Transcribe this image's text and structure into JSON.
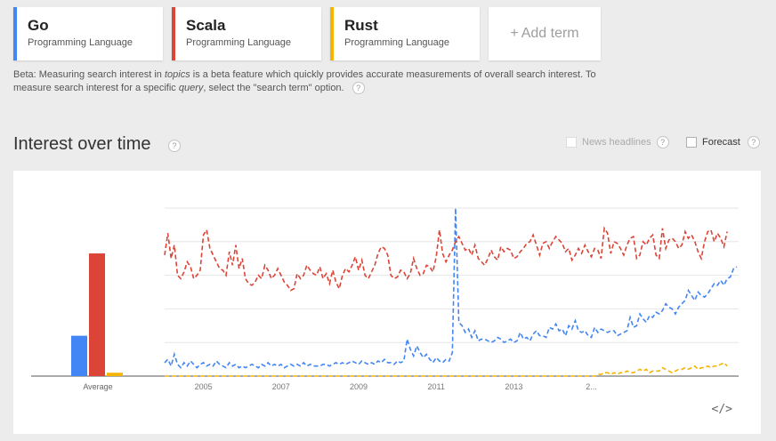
{
  "terms": [
    {
      "name": "Go",
      "type": "Programming Language",
      "color": "#4285f4"
    },
    {
      "name": "Scala",
      "type": "Programming Language",
      "color": "#db4437"
    },
    {
      "name": "Rust",
      "type": "Programming Language",
      "color": "#f4b400"
    }
  ],
  "add_term": {
    "plus": "+",
    "label": "Add term"
  },
  "beta_note": {
    "p1": "Beta: Measuring search interest in ",
    "topics": "topics",
    "p2": " is a beta feature which quickly provides accurate measurements of overall search interest. To measure search interest for a specific ",
    "query": "query",
    "p3": ", select the \"search term\" option.",
    "help": "?"
  },
  "section": {
    "title": "Interest over time",
    "help": "?"
  },
  "options": {
    "news_headlines": "News headlines",
    "forecast": "Forecast",
    "help": "?"
  },
  "embed_icon": "</>",
  "chart_data": {
    "type": "line",
    "x_start": "2004-01",
    "x_step": "month",
    "x_tick_labels": [
      "2005",
      "2007",
      "2009",
      "2011",
      "2013",
      "2..."
    ],
    "ylim": [
      0,
      100
    ],
    "grid": true,
    "average": {
      "label": "Average",
      "values": {
        "Go": 24,
        "Scala": 73,
        "Rust": 2
      }
    },
    "series": [
      {
        "name": "Go",
        "color": "#4285f4",
        "values": [
          8,
          10,
          6,
          13,
          7,
          5,
          8,
          6,
          9,
          7,
          5,
          7,
          8,
          6,
          7,
          6,
          9,
          7,
          6,
          5,
          8,
          6,
          7,
          5,
          6,
          5,
          6,
          7,
          6,
          5,
          7,
          6,
          8,
          6,
          7,
          6,
          7,
          5,
          6,
          7,
          6,
          7,
          6,
          8,
          6,
          7,
          6,
          6,
          6,
          7,
          7,
          6,
          7,
          8,
          7,
          8,
          7,
          8,
          9,
          8,
          7,
          9,
          8,
          7,
          8,
          7,
          9,
          8,
          10,
          8,
          8,
          7,
          9,
          8,
          9,
          22,
          16,
          12,
          18,
          14,
          11,
          13,
          10,
          8,
          11,
          9,
          8,
          10,
          9,
          14,
          100,
          32,
          30,
          26,
          28,
          23,
          27,
          21,
          22,
          22,
          21,
          20,
          21,
          23,
          22,
          20,
          21,
          22,
          20,
          21,
          26,
          22,
          23,
          21,
          25,
          27,
          24,
          24,
          23,
          29,
          28,
          31,
          27,
          28,
          24,
          30,
          28,
          33,
          27,
          26,
          27,
          24,
          23,
          29,
          26,
          28,
          27,
          26,
          27,
          27,
          24,
          25,
          26,
          27,
          35,
          29,
          30,
          37,
          34,
          32,
          36,
          35,
          38,
          37,
          39,
          43,
          41,
          40,
          37,
          41,
          43,
          45,
          51,
          48,
          45,
          50,
          48,
          47,
          49,
          52,
          55,
          54,
          57,
          54,
          58,
          59,
          64,
          65
        ]
      },
      {
        "name": "Scala",
        "color": "#db4437",
        "values": [
          72,
          85,
          70,
          78,
          60,
          58,
          62,
          68,
          65,
          58,
          60,
          63,
          84,
          87,
          76,
          72,
          68,
          64,
          63,
          60,
          74,
          66,
          78,
          64,
          70,
          58,
          55,
          54,
          56,
          60,
          58,
          66,
          63,
          58,
          60,
          64,
          60,
          56,
          54,
          51,
          52,
          61,
          58,
          60,
          66,
          63,
          61,
          60,
          65,
          58,
          61,
          55,
          63,
          56,
          52,
          60,
          64,
          62,
          66,
          71,
          63,
          69,
          60,
          58,
          62,
          66,
          73,
          77,
          76,
          72,
          60,
          58,
          59,
          63,
          62,
          58,
          61,
          70,
          64,
          60,
          61,
          66,
          65,
          62,
          71,
          87,
          73,
          68,
          72,
          75,
          80,
          83,
          79,
          75,
          76,
          72,
          78,
          70,
          68,
          66,
          70,
          75,
          71,
          69,
          77,
          74,
          76,
          75,
          70,
          71,
          74,
          76,
          79,
          80,
          84,
          78,
          72,
          79,
          80,
          76,
          80,
          83,
          81,
          79,
          74,
          76,
          69,
          72,
          76,
          73,
          78,
          74,
          71,
          76,
          75,
          70,
          88,
          85,
          73,
          80,
          79,
          76,
          72,
          78,
          82,
          83,
          70,
          72,
          80,
          78,
          82,
          84,
          72,
          70,
          88,
          76,
          81,
          82,
          80,
          76,
          78,
          86,
          82,
          84,
          80,
          74,
          70,
          80,
          86,
          87,
          80,
          85,
          82,
          77,
          86
        ]
      },
      {
        "name": "Rust",
        "color": "#f4b400",
        "values": [
          0,
          0,
          0,
          0,
          0,
          0,
          0,
          0,
          0,
          0,
          0,
          0,
          0,
          0,
          0,
          0,
          0,
          0,
          0,
          0,
          0,
          0,
          0,
          0,
          0,
          0,
          0,
          0,
          0,
          0,
          0,
          0,
          0,
          0,
          0,
          0,
          0,
          0,
          0,
          0,
          0,
          0,
          0,
          0,
          0,
          0,
          0,
          0,
          0,
          0,
          0,
          0,
          0,
          0,
          0,
          0,
          0,
          0,
          0,
          0,
          0,
          0,
          0,
          0,
          0,
          0,
          0,
          0,
          0,
          0,
          0,
          0,
          0,
          0,
          0,
          0,
          0,
          0,
          0,
          0,
          0,
          0,
          0,
          0,
          0,
          0,
          0,
          0,
          0,
          0,
          0,
          0,
          0,
          0,
          0,
          0,
          0,
          0,
          0,
          0,
          0,
          0,
          0,
          0,
          0,
          0,
          0,
          0,
          0,
          0,
          0,
          0,
          0,
          0,
          0,
          0,
          0,
          0,
          0,
          0,
          0,
          0,
          0,
          0,
          0,
          0,
          0,
          0,
          0,
          0,
          0,
          0,
          0,
          0,
          1,
          1,
          2,
          2,
          1,
          2,
          1,
          2,
          2,
          3,
          2,
          2,
          3,
          4,
          3,
          4,
          2,
          3,
          3,
          3,
          5,
          4,
          3,
          2,
          3,
          4,
          4,
          5,
          4,
          5,
          6,
          4,
          5,
          5,
          6,
          5,
          6,
          6,
          7,
          8,
          6
        ]
      }
    ]
  }
}
